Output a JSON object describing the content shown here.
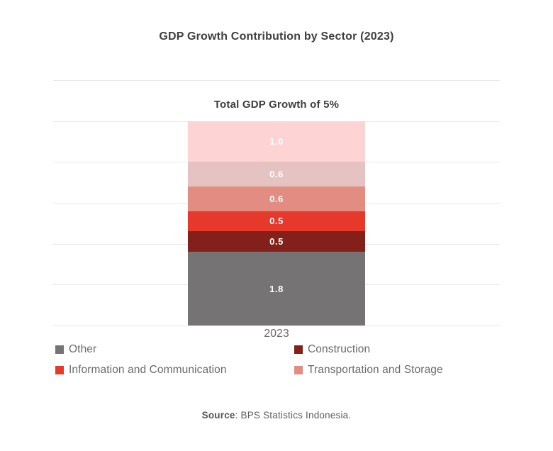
{
  "chart_data": {
    "type": "bar",
    "variant": "stacked-single-column",
    "title": "GDP Growth Contribution by Sector (2023)",
    "subtitle": "Total GDP Growth of 5%",
    "categories": [
      "2023"
    ],
    "xlabel": "",
    "ylabel": "",
    "ylim": [
      0,
      6
    ],
    "grid": true,
    "gridline_count": 7,
    "total": 5.0,
    "segments_bottom_to_top": [
      {
        "name": "Other",
        "value": 1.8,
        "value_label": "1.8",
        "color": "#757374"
      },
      {
        "name": "Construction",
        "value": 0.5,
        "value_label": "0.5",
        "color": "#84201a"
      },
      {
        "name": "Information and Communication",
        "value": 0.5,
        "value_label": "0.5",
        "color": "#e6382b"
      },
      {
        "name": "Transportation and Storage",
        "value": 0.6,
        "value_label": "0.6",
        "color": "#e28c82"
      },
      {
        "name": null,
        "value": 0.6,
        "value_label": "0.6",
        "color": "#e6c3c3"
      },
      {
        "name": null,
        "value": 1.0,
        "value_label": "1.0",
        "color": "#fdd3d3"
      }
    ],
    "legend": {
      "position": "bottom",
      "items": [
        {
          "label": "Other",
          "color": "#757374"
        },
        {
          "label": "Construction",
          "color": "#84201a"
        },
        {
          "label": "Information and Communication",
          "color": "#e6382b"
        },
        {
          "label": "Transportation and Storage",
          "color": "#e28c82"
        }
      ]
    },
    "colors": {
      "background": "#ffffff",
      "gridline": "#e9e9e9",
      "title_text": "#3e3e3e",
      "axis_text": "#6b6b6b",
      "legend_text": "#6a6a6a",
      "value_label_text": "#ffffff"
    }
  },
  "footer": {
    "source_label": "Source",
    "source_text": ": BPS Statistics Indonesia."
  }
}
